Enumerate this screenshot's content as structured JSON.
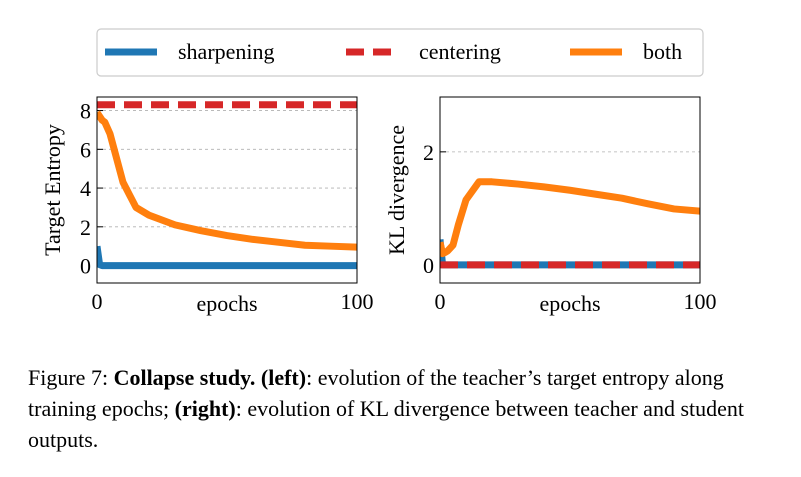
{
  "chart_data": [
    {
      "type": "line",
      "ylabel": "Target Entropy",
      "xlabel": "epochs",
      "x": [
        0,
        1,
        2,
        3,
        5,
        7,
        10,
        15,
        20,
        30,
        40,
        50,
        60,
        70,
        80,
        90,
        100
      ],
      "xlim": [
        0,
        100
      ],
      "xticks": [
        0,
        100
      ],
      "ylim": [
        -0.9,
        8.7
      ],
      "yticks": [
        0,
        2,
        4,
        6,
        8
      ],
      "grid": true,
      "series": [
        {
          "name": "sharpening",
          "color": "#1f77b4",
          "dashed": false,
          "values": [
            1.0,
            0.05,
            0,
            0,
            0,
            0,
            0,
            0,
            0,
            0,
            0,
            0,
            0,
            0,
            0,
            0,
            0
          ]
        },
        {
          "name": "centering",
          "color": "#d62728",
          "dashed": true,
          "values": [
            8.3,
            8.3,
            8.3,
            8.3,
            8.3,
            8.3,
            8.3,
            8.3,
            8.3,
            8.3,
            8.3,
            8.3,
            8.3,
            8.3,
            8.3,
            8.3,
            8.3
          ]
        },
        {
          "name": "both",
          "color": "#ff7f0e",
          "dashed": false,
          "values": [
            7.9,
            7.7,
            7.5,
            7.4,
            6.8,
            5.8,
            4.3,
            3.0,
            2.6,
            2.1,
            1.8,
            1.55,
            1.35,
            1.2,
            1.05,
            1.0,
            0.95
          ]
        }
      ]
    },
    {
      "type": "line",
      "ylabel": "KL divergence",
      "xlabel": "epochs",
      "x": [
        0,
        1,
        2,
        3,
        5,
        7,
        10,
        15,
        20,
        30,
        40,
        50,
        60,
        70,
        80,
        90,
        100
      ],
      "xlim": [
        0,
        100
      ],
      "xticks": [
        0,
        100
      ],
      "ylim": [
        -0.32,
        2.97
      ],
      "yticks": [
        0,
        2
      ],
      "grid": true,
      "series": [
        {
          "color": "#1f77b4",
          "dashed": false,
          "values": [
            0.45,
            0,
            0,
            0,
            0,
            0,
            0,
            0,
            0,
            0,
            0,
            0,
            0,
            0,
            0,
            0,
            0
          ]
        },
        {
          "color": "#d62728",
          "dashed": true,
          "values": [
            0,
            0,
            0,
            0,
            0,
            0,
            0,
            0,
            0,
            0,
            0,
            0,
            0,
            0,
            0,
            0,
            0
          ]
        },
        {
          "color": "#ff7f0e",
          "dashed": false,
          "values": [
            0.4,
            0.2,
            0.22,
            0.25,
            0.35,
            0.7,
            1.15,
            1.47,
            1.47,
            1.43,
            1.38,
            1.32,
            1.25,
            1.18,
            1.08,
            0.99,
            0.95
          ]
        }
      ]
    }
  ],
  "caption": [
    {
      "text": "Figure 7: ",
      "bold": false
    },
    {
      "text": "Collapse study.",
      "bold": true
    },
    {
      "text": " ",
      "bold": false
    },
    {
      "text": "(left)",
      "bold": true
    },
    {
      "text": ": evolution of the teacher’s target entropy along training epochs; ",
      "bold": false
    },
    {
      "text": "(right)",
      "bold": true
    },
    {
      "text": ": evolution of KL divergence between teacher and student outputs.",
      "bold": false
    }
  ]
}
